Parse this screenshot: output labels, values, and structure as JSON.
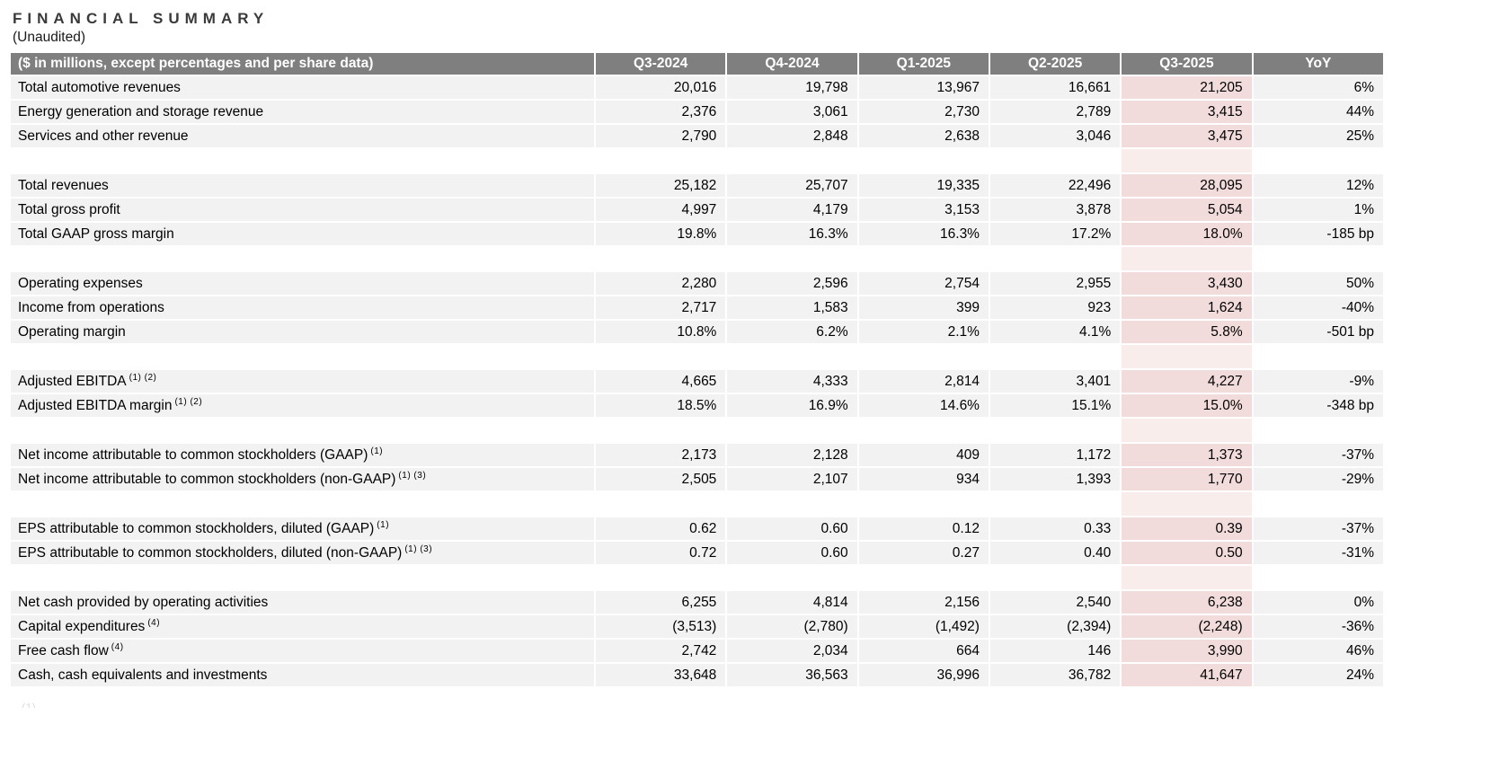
{
  "page": {
    "title": "FINANCIAL SUMMARY",
    "subtitle": "(Unaudited)",
    "footnote_fragment": "(1)"
  },
  "table": {
    "corner_label": "($ in millions, except percentages and per share data)",
    "columns": [
      "Q3-2024",
      "Q4-2024",
      "Q1-2025",
      "Q2-2025",
      "Q3-2025",
      "YoY"
    ],
    "highlight_column": "Q3-2025",
    "colors": {
      "header_bg": "#7f7f7f",
      "row_bg": "#f2f2f2",
      "highlight_bg": "#f2dcdb",
      "highlight_spacer_bg": "#f9edec"
    },
    "rows": [
      {
        "label": "Total automotive revenues",
        "sup": "",
        "values": [
          "20,016",
          "19,798",
          "13,967",
          "16,661",
          "21,205"
        ],
        "yoy": "6%"
      },
      {
        "label": "Energy generation and storage revenue",
        "sup": "",
        "values": [
          "2,376",
          "3,061",
          "2,730",
          "2,789",
          "3,415"
        ],
        "yoy": "44%"
      },
      {
        "label": "Services and other revenue",
        "sup": "",
        "values": [
          "2,790",
          "2,848",
          "2,638",
          "3,046",
          "3,475"
        ],
        "yoy": "25%"
      },
      {
        "type": "spacer"
      },
      {
        "label": "Total revenues",
        "sup": "",
        "values": [
          "25,182",
          "25,707",
          "19,335",
          "22,496",
          "28,095"
        ],
        "yoy": "12%"
      },
      {
        "label": "Total gross profit",
        "sup": "",
        "values": [
          "4,997",
          "4,179",
          "3,153",
          "3,878",
          "5,054"
        ],
        "yoy": "1%"
      },
      {
        "label": "Total GAAP gross margin",
        "sup": "",
        "values": [
          "19.8%",
          "16.3%",
          "16.3%",
          "17.2%",
          "18.0%"
        ],
        "yoy": "-185 bp"
      },
      {
        "type": "spacer"
      },
      {
        "label": "Operating expenses",
        "sup": "",
        "values": [
          "2,280",
          "2,596",
          "2,754",
          "2,955",
          "3,430"
        ],
        "yoy": "50%"
      },
      {
        "label": "Income from operations",
        "sup": "",
        "values": [
          "2,717",
          "1,583",
          "399",
          "923",
          "1,624"
        ],
        "yoy": "-40%"
      },
      {
        "label": "Operating margin",
        "sup": "",
        "values": [
          "10.8%",
          "6.2%",
          "2.1%",
          "4.1%",
          "5.8%"
        ],
        "yoy": "-501 bp"
      },
      {
        "type": "spacer"
      },
      {
        "label": "Adjusted EBITDA",
        "sup": "(1) (2)",
        "values": [
          "4,665",
          "4,333",
          "2,814",
          "3,401",
          "4,227"
        ],
        "yoy": "-9%"
      },
      {
        "label": "Adjusted EBITDA margin",
        "sup": "(1) (2)",
        "values": [
          "18.5%",
          "16.9%",
          "14.6%",
          "15.1%",
          "15.0%"
        ],
        "yoy": "-348 bp"
      },
      {
        "type": "spacer"
      },
      {
        "label": "Net income attributable to common stockholders (GAAP)",
        "sup": "(1)",
        "values": [
          "2,173",
          "2,128",
          "409",
          "1,172",
          "1,373"
        ],
        "yoy": "-37%"
      },
      {
        "label": "Net income attributable to common stockholders (non-GAAP)",
        "sup": "(1) (3)",
        "values": [
          "2,505",
          "2,107",
          "934",
          "1,393",
          "1,770"
        ],
        "yoy": "-29%"
      },
      {
        "type": "spacer"
      },
      {
        "label": "EPS attributable to common stockholders, diluted (GAAP)",
        "sup": "(1)",
        "values": [
          "0.62",
          "0.60",
          "0.12",
          "0.33",
          "0.39"
        ],
        "yoy": "-37%"
      },
      {
        "label": "EPS attributable to common stockholders, diluted (non-GAAP)",
        "sup": "(1) (3)",
        "values": [
          "0.72",
          "0.60",
          "0.27",
          "0.40",
          "0.50"
        ],
        "yoy": "-31%"
      },
      {
        "type": "spacer"
      },
      {
        "label": "Net cash provided by operating activities",
        "sup": "",
        "values": [
          "6,255",
          "4,814",
          "2,156",
          "2,540",
          "6,238"
        ],
        "yoy": "0%"
      },
      {
        "label": "Capital expenditures",
        "sup": "(4)",
        "values": [
          "(3,513)",
          "(2,780)",
          "(1,492)",
          "(2,394)",
          "(2,248)"
        ],
        "yoy": "-36%"
      },
      {
        "label": "Free cash flow",
        "sup": "(4)",
        "values": [
          "2,742",
          "2,034",
          "664",
          "146",
          "3,990"
        ],
        "yoy": "46%"
      },
      {
        "label": "Cash, cash equivalents and investments",
        "sup": "",
        "values": [
          "33,648",
          "36,563",
          "36,996",
          "36,782",
          "41,647"
        ],
        "yoy": "24%"
      }
    ]
  }
}
